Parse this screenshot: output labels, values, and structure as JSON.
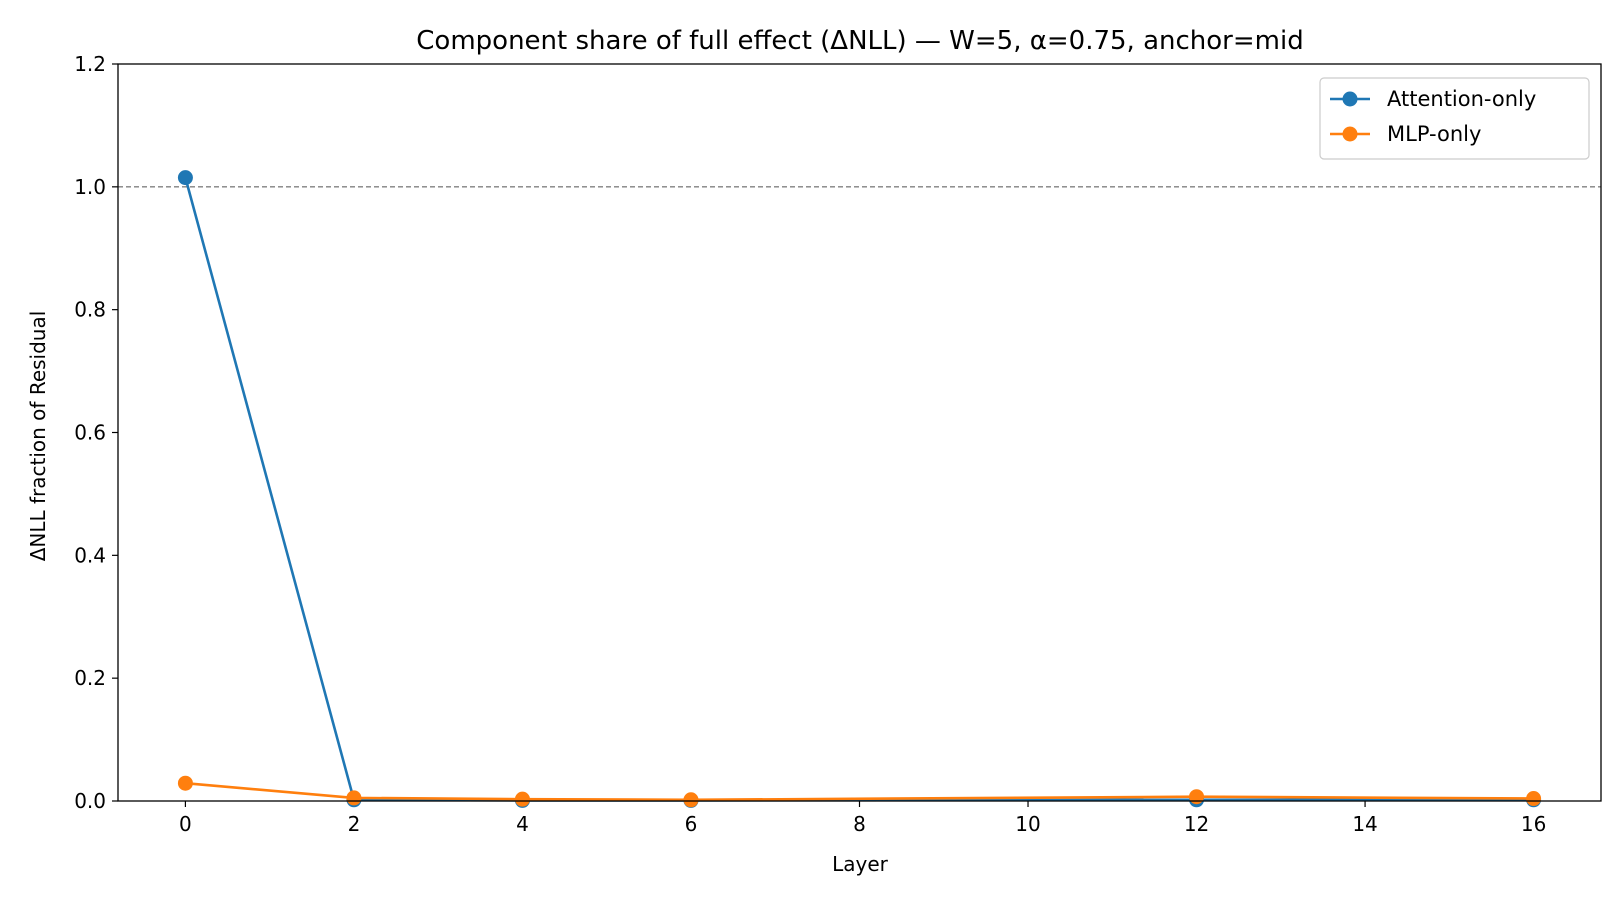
{
  "chart_data": {
    "type": "line",
    "title": "Component share of full effect (ΔNLL) — W=5, α=0.75, anchor=mid",
    "xlabel": "Layer",
    "ylabel": "ΔNLL fraction of Residual",
    "xlim": [
      -0.8,
      16.8
    ],
    "ylim": [
      0,
      1.2
    ],
    "xticks": [
      0,
      2,
      4,
      6,
      8,
      10,
      12,
      14,
      16
    ],
    "xtick_labels": [
      "0",
      "2",
      "4",
      "6",
      "8",
      "10",
      "12",
      "14",
      "16"
    ],
    "yticks": [
      0,
      0.2,
      0.4,
      0.6,
      0.8,
      1.0,
      1.2
    ],
    "ytick_labels": [
      "0.0",
      "0.2",
      "0.4",
      "0.6",
      "0.8",
      "1.0",
      "1.2"
    ],
    "reference_line": {
      "y": 1.0,
      "style": "dashed",
      "color": "#808080"
    },
    "grid": false,
    "legend_position": "top-right",
    "series": [
      {
        "name": "Attention-only",
        "color": "#1f77b4",
        "x": [
          0,
          2,
          4,
          6,
          12,
          16
        ],
        "y": [
          1.015,
          0.002,
          0.001,
          0.001,
          0.002,
          0.002
        ]
      },
      {
        "name": "MLP-only",
        "color": "#ff7f0e",
        "x": [
          0,
          2,
          4,
          6,
          12,
          16
        ],
        "y": [
          0.029,
          0.005,
          0.003,
          0.002,
          0.007,
          0.004
        ]
      }
    ]
  }
}
